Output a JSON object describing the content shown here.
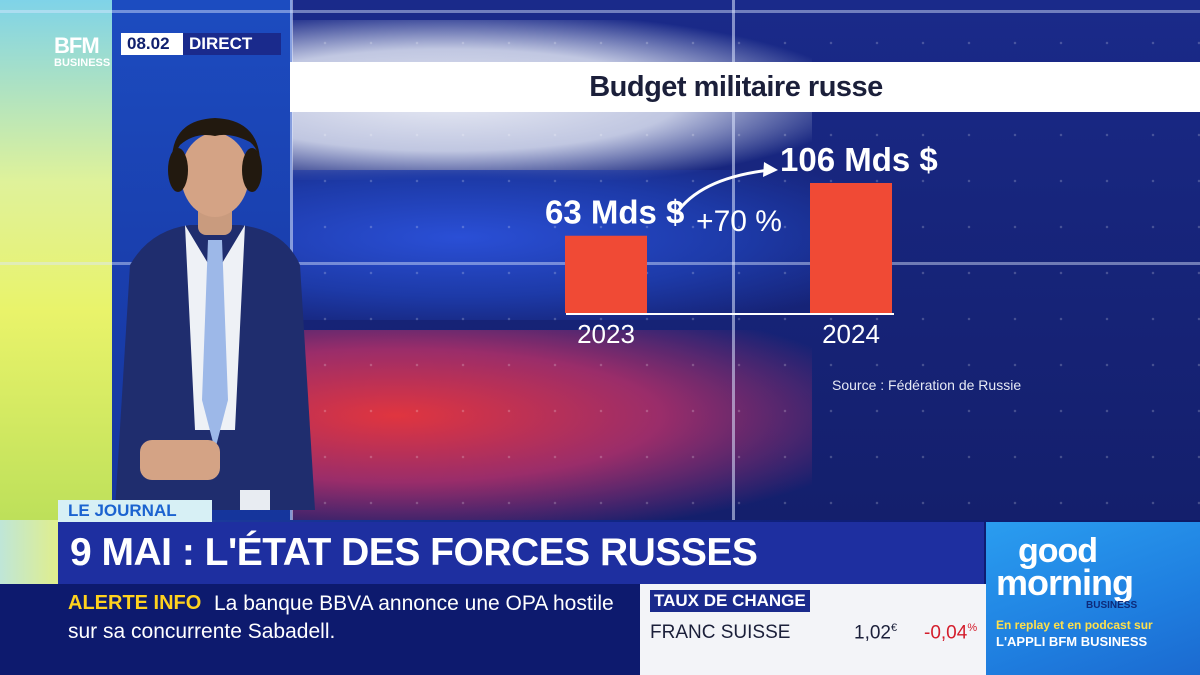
{
  "broadcast": {
    "logo_top": "BFM",
    "logo_bottom": "BUSINESS",
    "time": "08.02",
    "live_label": "DIRECT"
  },
  "lower_third": {
    "tag": "LE JOURNAL",
    "headline": "9 MAI : L'ÉTAT DES FORCES RUSSES",
    "alert_label": "ALERTE INFO",
    "alert_line1": "La banque BBVA annonce une OPA hostile",
    "alert_line2": "sur sa concurrente Sabadell."
  },
  "fx": {
    "title": "TAUX DE CHANGE",
    "name": "FRANC SUISSE",
    "value": "1,02",
    "value_unit": "€",
    "change": "-0,04",
    "change_unit": "%"
  },
  "promo": {
    "word1": "good",
    "word2": "morning",
    "word3": "BUSINESS",
    "line1": "En replay et en podcast sur",
    "line2": "L'APPLI BFM BUSINESS"
  },
  "colors": {
    "bar": "#f04a35",
    "headline_bg": "#1e2fa0",
    "alert": "#ffd21e",
    "fx_change": "#d41d2c"
  },
  "chart_data": {
    "type": "bar",
    "title": "Budget militaire russe",
    "categories": [
      "2023",
      "2024"
    ],
    "values": [
      63,
      106
    ],
    "unit": "Mds $",
    "data_labels": [
      "63 Mds $",
      "106 Mds $"
    ],
    "annotation": "+70 %",
    "source": "Source : Fédération de Russie",
    "ylim": [
      0,
      106
    ]
  }
}
